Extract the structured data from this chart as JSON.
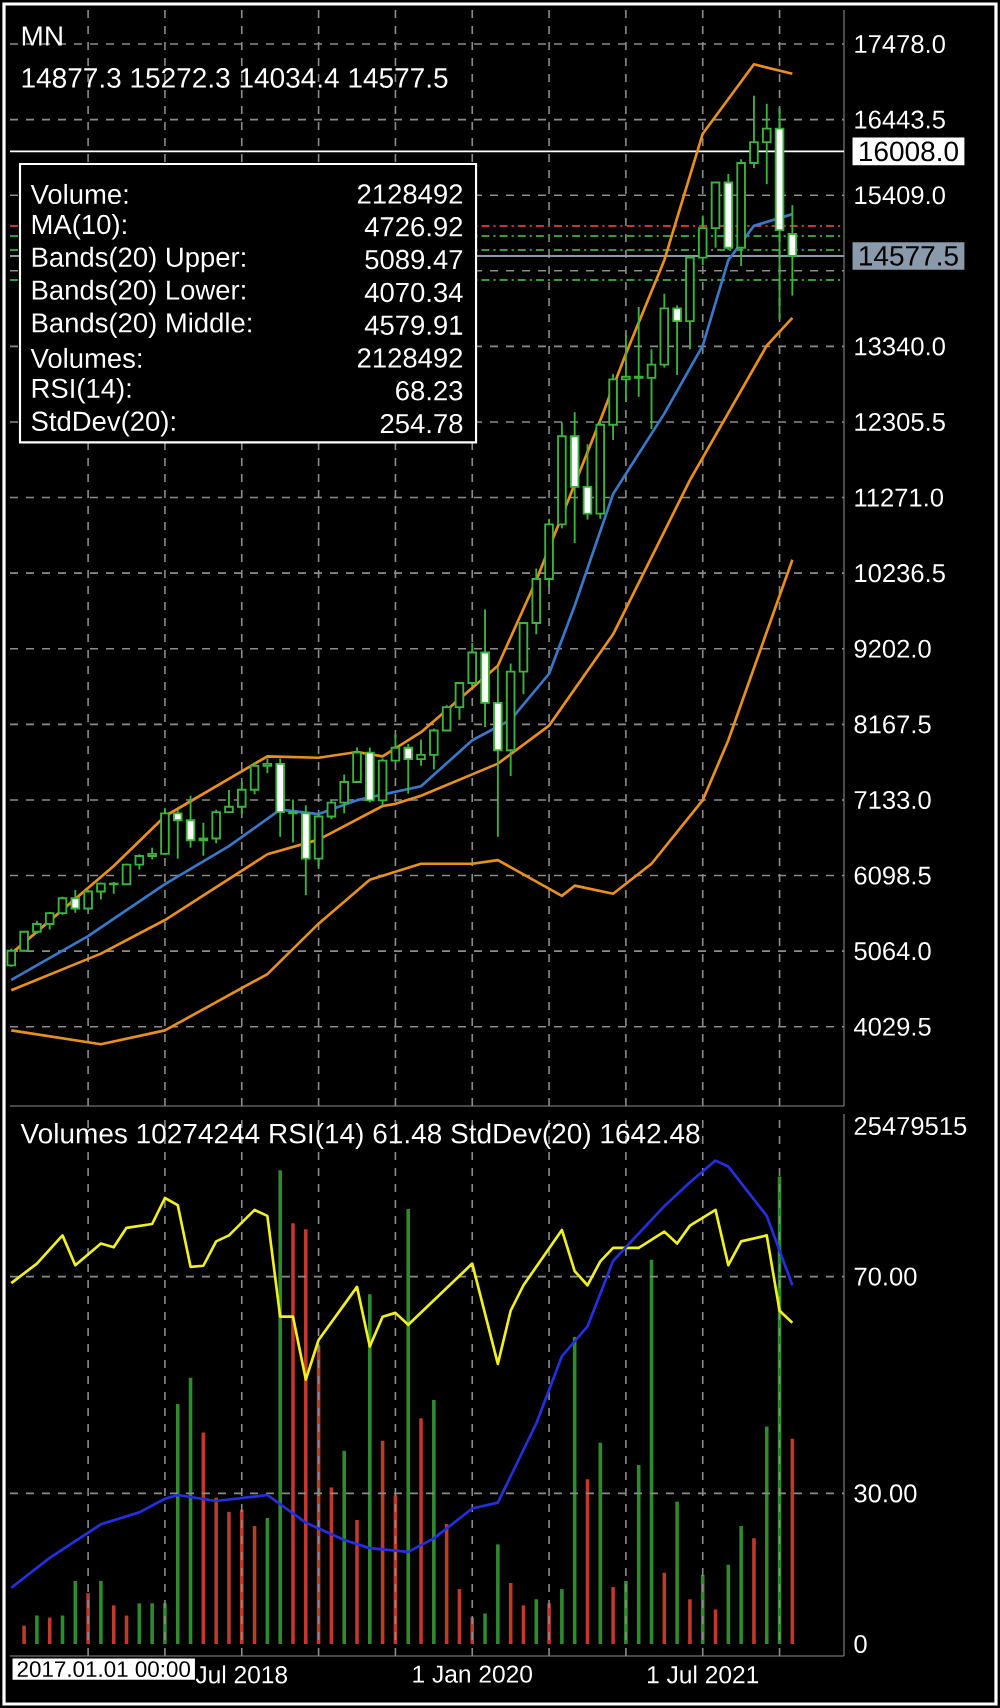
{
  "chart_data": [
    {
      "type": "candlestick",
      "title": "MN",
      "subtitle": "14877.3 15272.3 14034.4 14577.5",
      "x": [
        "2017-01",
        "2017-02",
        "2017-03",
        "2017-04",
        "2017-05",
        "2017-06",
        "2017-07",
        "2017-08",
        "2017-09",
        "2017-10",
        "2017-11",
        "2017-12",
        "2018-01",
        "2018-02",
        "2018-03",
        "2018-04",
        "2018-05",
        "2018-06",
        "2018-07",
        "2018-08",
        "2018-09",
        "2018-10",
        "2018-11",
        "2018-12",
        "2019-01",
        "2019-02",
        "2019-03",
        "2019-04",
        "2019-05",
        "2019-06",
        "2019-07",
        "2019-08",
        "2019-09",
        "2019-10",
        "2019-11",
        "2019-12",
        "2020-01",
        "2020-02",
        "2020-03",
        "2020-04",
        "2020-05",
        "2020-06",
        "2020-07",
        "2020-08",
        "2020-09",
        "2020-10",
        "2020-11",
        "2020-12",
        "2021-01",
        "2021-02",
        "2021-03",
        "2021-04",
        "2021-05",
        "2021-06",
        "2021-07",
        "2021-08",
        "2021-09",
        "2021-10",
        "2021-11",
        "2021-12",
        "2022-01",
        "2022-02"
      ],
      "ohlc": [
        [
          4870,
          5100,
          4850,
          5070
        ],
        [
          5070,
          5340,
          5060,
          5330
        ],
        [
          5330,
          5480,
          5300,
          5436
        ],
        [
          5436,
          5600,
          5360,
          5584
        ],
        [
          5584,
          5810,
          5560,
          5788
        ],
        [
          5788,
          5900,
          5590,
          5647
        ],
        [
          5647,
          5900,
          5640,
          5880
        ],
        [
          5880,
          6000,
          5770,
          5988
        ],
        [
          5988,
          6010,
          5850,
          5979
        ],
        [
          5979,
          6260,
          5970,
          6248
        ],
        [
          6248,
          6390,
          6180,
          6366
        ],
        [
          6366,
          6480,
          6320,
          6396
        ],
        [
          6396,
          7020,
          6390,
          6949
        ],
        [
          6949,
          7000,
          6330,
          6855
        ],
        [
          6855,
          7190,
          6480,
          6581
        ],
        [
          6581,
          6820,
          6370,
          6605
        ],
        [
          6605,
          7000,
          6540,
          6967
        ],
        [
          6967,
          7270,
          6960,
          7040
        ],
        [
          7040,
          7380,
          6940,
          7272
        ],
        [
          7272,
          7650,
          7210,
          7600
        ],
        [
          7600,
          7700,
          7500,
          7627
        ],
        [
          7627,
          7700,
          6630,
          6967
        ],
        [
          6967,
          7140,
          6550,
          6950
        ],
        [
          6950,
          7060,
          5830,
          6330
        ],
        [
          6330,
          6940,
          6190,
          6906
        ],
        [
          6906,
          7130,
          6870,
          7097
        ],
        [
          7097,
          7480,
          6950,
          7378
        ],
        [
          7378,
          7850,
          7370,
          7781
        ],
        [
          7781,
          7850,
          7100,
          7127
        ],
        [
          7127,
          7700,
          7050,
          7671
        ],
        [
          7671,
          8030,
          7650,
          7848
        ],
        [
          7848,
          7900,
          7220,
          7692
        ],
        [
          7692,
          7960,
          7600,
          7749
        ],
        [
          7749,
          8110,
          7550,
          8083
        ],
        [
          8083,
          8430,
          8080,
          8404
        ],
        [
          8404,
          8740,
          8230,
          8733
        ],
        [
          8733,
          9280,
          8700,
          9151
        ],
        [
          9151,
          9740,
          8130,
          8462
        ],
        [
          8462,
          8950,
          6630,
          7813
        ],
        [
          7813,
          9000,
          7460,
          8890
        ],
        [
          8890,
          9560,
          8580,
          9555
        ],
        [
          9555,
          10300,
          9400,
          10156
        ],
        [
          10156,
          10980,
          10050,
          10905
        ],
        [
          10905,
          12300,
          10850,
          12110
        ],
        [
          12110,
          12440,
          10650,
          11418
        ],
        [
          11418,
          12000,
          10970,
          11052
        ],
        [
          11052,
          12320,
          10980,
          12268
        ],
        [
          12268,
          12960,
          12060,
          12888
        ],
        [
          12888,
          13500,
          12580,
          12925
        ],
        [
          12925,
          13880,
          12650,
          12909
        ],
        [
          12909,
          13300,
          12210,
          13091
        ],
        [
          13091,
          14060,
          13050,
          13860
        ],
        [
          13860,
          13900,
          12950,
          13686
        ],
        [
          13686,
          14580,
          13300,
          14554
        ],
        [
          14554,
          15130,
          14450,
          14959
        ],
        [
          14959,
          15590,
          14690,
          15582
        ],
        [
          15582,
          15700,
          14660,
          14690
        ],
        [
          14690,
          15900,
          14440,
          15850
        ],
        [
          15850,
          16770,
          15780,
          16135
        ],
        [
          16135,
          16660,
          15560,
          16320
        ],
        [
          16320,
          16600,
          13720,
          14930
        ],
        [
          14877.3,
          15272.3,
          14034.4,
          14577.5
        ]
      ],
      "series": [
        {
          "type": "line",
          "color": "#e8901c",
          "x": [
            "2017-01",
            "2017-09",
            "2018-01",
            "2018-09",
            "2019-01",
            "2019-04",
            "2019-06",
            "2019-09",
            "2020-03",
            "2020-06",
            "2020-11",
            "2021-01",
            "2021-04",
            "2021-07",
            "2021-11",
            "2022-02"
          ],
          "values": [
            5030,
            6230,
            6910,
            7730,
            7710,
            7790,
            7730,
            8060,
            8970,
            10140,
            12330,
            13240,
            14520,
            16250,
            17200,
            17070
          ]
        },
        {
          "type": "line",
          "color": "#e8901c",
          "x": [
            "2017-01",
            "2017-08",
            "2018-01",
            "2018-09",
            "2019-01",
            "2019-06",
            "2019-07",
            "2019-09",
            "2020-03",
            "2020-07",
            "2020-12",
            "2021-06",
            "2021-12",
            "2022-02"
          ],
          "values": [
            4530,
            5030,
            5490,
            6390,
            6590,
            7050,
            7080,
            7190,
            7630,
            8150,
            9400,
            11510,
            13350,
            13730
          ]
        },
        {
          "type": "line",
          "color": "#e8901c",
          "x": [
            "2017-01",
            "2017-08",
            "2018-01",
            "2018-09",
            "2019-01",
            "2019-05",
            "2019-09",
            "2020-01",
            "2020-03",
            "2020-08",
            "2020-09",
            "2020-12",
            "2021-03",
            "2021-07",
            "2021-09",
            "2022-02"
          ],
          "values": [
            3980,
            3790,
            3980,
            4750,
            5440,
            6040,
            6260,
            6260,
            6310,
            5820,
            5960,
            5850,
            6260,
            7130,
            7950,
            10420
          ]
        },
        {
          "type": "line",
          "color": "#3a78c8",
          "x": [
            "2017-01",
            "2017-07",
            "2018-01",
            "2018-06",
            "2018-10",
            "2019-01",
            "2019-04",
            "2019-09",
            "2020-01",
            "2020-04",
            "2020-07",
            "2020-09",
            "2020-12",
            "2021-04",
            "2021-07",
            "2021-09",
            "2021-11",
            "2022-02"
          ],
          "values": [
            4670,
            5270,
            5980,
            6500,
            7000,
            6940,
            7130,
            7320,
            7950,
            8230,
            8860,
            9790,
            11320,
            12420,
            13350,
            14520,
            14990,
            15150
          ]
        }
      ],
      "xlim": [
        "2016-12-28",
        "2022-06-02"
      ],
      "xticks": [
        {
          "value": "2017-07",
          "label": null
        },
        {
          "value": "2018-01",
          "label": null
        },
        {
          "value": "2018-07",
          "label": null
        },
        {
          "value": "2019-01",
          "label": null
        },
        {
          "value": "2019-07",
          "label": null
        },
        {
          "value": "2020-01",
          "label": null
        },
        {
          "value": "2020-07",
          "label": null
        },
        {
          "value": "2021-01",
          "label": null
        },
        {
          "value": "2021-07",
          "label": null
        },
        {
          "value": "2022-01",
          "label": null
        }
      ],
      "ylim": [
        2945,
        17943
      ],
      "yticks": [
        {
          "value": 17478,
          "label": "17478.0"
        },
        {
          "value": 16443.5,
          "label": "16443.5"
        },
        {
          "value": 15409,
          "label": "15409.0"
        },
        {
          "value": 14374.5,
          "label": null
        },
        {
          "value": 13340,
          "label": "13340.0"
        },
        {
          "value": 12305.5,
          "label": "12305.5"
        },
        {
          "value": 11271,
          "label": "11271.0"
        },
        {
          "value": 10236.5,
          "label": "10236.5"
        },
        {
          "value": 9202,
          "label": "9202.0"
        },
        {
          "value": 8167.5,
          "label": "8167.5"
        },
        {
          "value": 7133,
          "label": "7133.0"
        },
        {
          "value": 6098.5,
          "label": "6098.5"
        },
        {
          "value": 5064,
          "label": "5064.0"
        },
        {
          "value": 4029.5,
          "label": "4029.5"
        }
      ],
      "tick_labels": "y",
      "grid": true,
      "ref_lines": [
        {
          "axis": "y",
          "value": 16008.0,
          "label": "16008.0",
          "color": "#ffffff"
        },
        {
          "axis": "y",
          "value": 14577.5,
          "label": "14577.5",
          "color": "#8a9aab"
        },
        {
          "axis": "y",
          "value": 14987,
          "color": "#cc3333",
          "line_style": "dashed"
        },
        {
          "axis": "y",
          "value": 14850,
          "color": "#3a9a3a",
          "line_style": "dashed"
        },
        {
          "axis": "y",
          "value": 14659,
          "color": "#3a9a3a",
          "line_style": "dashed"
        },
        {
          "axis": "y",
          "value": 14248,
          "color": "#3a9a3a",
          "line_style": "dashed"
        }
      ],
      "annotations": [
        "Volume:",
        "2128492",
        "MA(10):",
        "4726.92",
        "Bands(20) Upper:",
        "5089.47",
        "Bands(20) Lower:",
        "4070.34",
        "Bands(20) Middle:",
        "4579.91",
        "Volumes:",
        "2128492",
        "RSI(14):",
        "68.23",
        "StdDev(20):",
        "254.78"
      ]
    },
    {
      "type": "line",
      "title": "Volumes 10274244 RSI(14) 61.48 StdDev(20) 1642.48",
      "series": [
        {
          "type": "bar",
          "axis": "y2",
          "x": [
            "2017-02",
            "2017-03",
            "2017-04",
            "2017-05",
            "2017-06",
            "2017-07",
            "2017-08",
            "2017-09",
            "2017-10",
            "2017-11",
            "2017-12",
            "2018-01",
            "2018-02",
            "2018-03",
            "2018-04",
            "2018-05",
            "2018-06",
            "2018-07",
            "2018-08",
            "2018-09",
            "2018-10",
            "2018-11",
            "2018-12",
            "2019-01",
            "2019-02",
            "2019-03",
            "2019-04",
            "2019-05",
            "2019-06",
            "2019-07",
            "2019-08",
            "2019-09",
            "2019-10",
            "2019-11",
            "2019-12",
            "2020-01",
            "2020-02",
            "2020-03",
            "2020-04",
            "2020-05",
            "2020-06",
            "2020-07",
            "2020-08",
            "2020-09",
            "2020-10",
            "2020-11",
            "2020-12",
            "2021-01",
            "2021-02",
            "2021-03",
            "2021-04",
            "2021-05",
            "2021-06",
            "2021-07",
            "2021-08",
            "2021-09",
            "2021-10",
            "2021-11",
            "2021-12",
            "2022-01",
            "2022-02"
          ],
          "values": [
            900000,
            1400000,
            1300000,
            1400000,
            3100000,
            2500000,
            3100000,
            1900000,
            1400000,
            2000000,
            2000000,
            2000000,
            11800000,
            13100000,
            10400000,
            7200000,
            6500000,
            6600000,
            5800000,
            6200000,
            23300000,
            20700000,
            20400000,
            14700000,
            7700000,
            9500000,
            6100000,
            17200000,
            10000000,
            7300000,
            21400000,
            11100000,
            12000000,
            5900000,
            2700000,
            1300000,
            1500000,
            4900000,
            3000000,
            1900000,
            2200000,
            2000000,
            2700000,
            15100000,
            8100000,
            9900000,
            2800000,
            3100000,
            8800000,
            18900000,
            3500000,
            7000000,
            2200000,
            3400000,
            1700000,
            3900000,
            5800000,
            5200000,
            10700000,
            23000000,
            10100000
          ],
          "colors": [
            "#c0392b",
            "#2e8b2e",
            "#c0392b",
            "#2e8b2e",
            "#2e8b2e",
            "#c0392b",
            "#2e8b2e",
            "#c0392b",
            "#c0392b",
            "#2e8b2e",
            "#2e8b2e",
            "#2e8b2e",
            "#2e8b2e",
            "#2e8b2e",
            "#c0392b",
            "#c0392b",
            "#c0392b",
            "#c0392b",
            "#c0392b",
            "#2e8b2e",
            "#2e8b2e",
            "#c0392b",
            "#c0392b",
            "#c0392b",
            "#c0392b",
            "#2e8b2e",
            "#c0392b",
            "#2e8b2e",
            "#c0392b",
            "#c0392b",
            "#2e8b2e",
            "#c0392b",
            "#2e8b2e",
            "#c0392b",
            "#c0392b",
            "#c0392b",
            "#2e8b2e",
            "#2e8b2e",
            "#c0392b",
            "#c0392b",
            "#2e8b2e",
            "#c0392b",
            "#2e8b2e",
            "#2e8b2e",
            "#c0392b",
            "#2e8b2e",
            "#c0392b",
            "#2e8b2e",
            "#2e8b2e",
            "#2e8b2e",
            "#c0392b",
            "#2e8b2e",
            "#c0392b",
            "#2e8b2e",
            "#c0392b",
            "#2e8b2e",
            "#2e8b2e",
            "#c0392b",
            "#2e8b2e",
            "#2e8b2e",
            "#c0392b"
          ]
        },
        {
          "type": "line",
          "color": "#f0f020",
          "x": [
            "2017-01",
            "2017-03",
            "2017-05",
            "2017-06",
            "2017-08",
            "2017-09",
            "2017-10",
            "2017-12",
            "2018-01",
            "2018-02",
            "2018-03",
            "2018-04",
            "2018-05",
            "2018-06",
            "2018-08",
            "2018-09",
            "2018-10",
            "2018-11",
            "2018-12",
            "2019-01",
            "2019-04",
            "2019-05",
            "2019-06",
            "2019-07",
            "2019-08",
            "2020-01",
            "2020-03",
            "2020-04",
            "2020-05",
            "2020-08",
            "2020-09",
            "2020-10",
            "2020-11",
            "2020-12",
            "2021-02",
            "2021-04",
            "2021-05",
            "2021-06",
            "2021-08",
            "2021-09",
            "2021-10",
            "2021-12",
            "2022-01",
            "2022-02"
          ],
          "values": [
            68.8,
            72.4,
            77.6,
            72.1,
            76.1,
            75.4,
            79.0,
            79.7,
            84.5,
            83.2,
            71.8,
            72.0,
            76.5,
            77.6,
            82.3,
            81.2,
            62.6,
            62.6,
            51.0,
            58.3,
            68.1,
            57.1,
            62.6,
            63.3,
            61.1,
            72.4,
            53.9,
            63.7,
            68.4,
            78.6,
            71.0,
            68.4,
            72.8,
            75.3,
            75.3,
            78.3,
            76.1,
            79.4,
            82.3,
            72.1,
            76.5,
            77.6,
            63.7,
            61.5
          ]
        },
        {
          "type": "line",
          "color": "#2430e0",
          "x": [
            "2017-01",
            "2017-04",
            "2017-08",
            "2017-11",
            "2018-01",
            "2018-02",
            "2018-05",
            "2018-09",
            "2018-12",
            "2019-03",
            "2019-05",
            "2019-08",
            "2019-10",
            "2020-01",
            "2020-03",
            "2020-06",
            "2020-08",
            "2020-10",
            "2020-12",
            "2021-04",
            "2021-06",
            "2021-08",
            "2021-09",
            "2021-12",
            "2022-02"
          ],
          "values": [
            12.6,
            18.1,
            24.3,
            26.5,
            29.0,
            29.7,
            28.6,
            29.7,
            24.6,
            21.4,
            19.9,
            19.2,
            21.7,
            27.2,
            28.3,
            42.9,
            55.3,
            60.8,
            72.9,
            83.0,
            87.4,
            91.4,
            90.3,
            81.2,
            68.4
          ]
        }
      ],
      "xlim": [
        "2016-12-28",
        "2022-06-02"
      ],
      "annotations": [
        "2017.01.01 00:00"
      ],
      "xticks": [
        {
          "value": "2017-07",
          "label": null
        },
        {
          "value": "2018-01",
          "label": null
        },
        {
          "value": "2018-07",
          "label": "Jul 2018"
        },
        {
          "value": "2019-01",
          "label": null
        },
        {
          "value": "2019-07",
          "label": null
        },
        {
          "value": "2020-01",
          "label": "1 Jan 2020"
        },
        {
          "value": "2020-07",
          "label": null
        },
        {
          "value": "2021-01",
          "label": null
        },
        {
          "value": "2021-07",
          "label": "1 Jul 2021"
        },
        {
          "value": "2022-01",
          "label": null
        }
      ],
      "ylim": [
        0,
        100
      ],
      "yticks": [
        {
          "value": 30,
          "label": "30.00"
        },
        {
          "value": 70,
          "label": "70.00"
        }
      ],
      "y2lim": [
        -590000,
        26070000
      ],
      "y2ticks": [
        0,
        25479515
      ],
      "grid": true
    }
  ]
}
